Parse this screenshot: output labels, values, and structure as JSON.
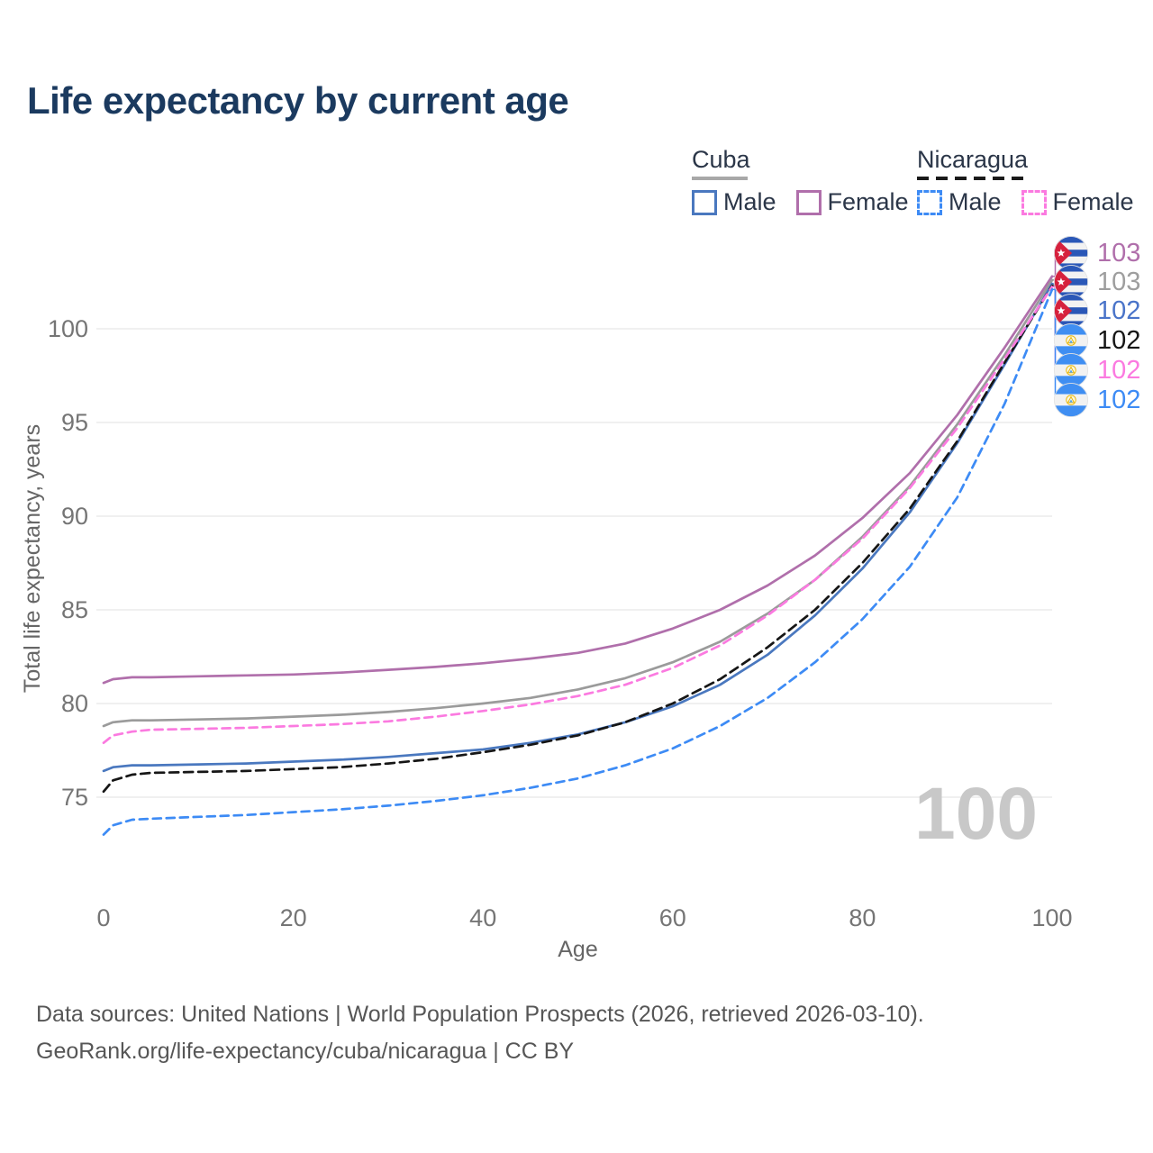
{
  "title": "Life expectancy by current age",
  "legend": {
    "groups": [
      {
        "label": "Cuba",
        "style": "solid",
        "items": [
          {
            "label": "Male",
            "color": "#4a78bf"
          },
          {
            "label": "Female",
            "color": "#b06fab"
          }
        ]
      },
      {
        "label": "Nicaragua",
        "style": "dashed",
        "items": [
          {
            "label": "Male",
            "color": "#3d8bf5"
          },
          {
            "label": "Female",
            "color": "#fb7ae0"
          }
        ]
      }
    ]
  },
  "axes": {
    "y_title": "Total life expectancy, years",
    "x_title": "Age",
    "y_ticks": [
      75,
      80,
      85,
      90,
      95,
      100
    ],
    "x_ticks": [
      0,
      20,
      40,
      60,
      80,
      100
    ]
  },
  "watermark": "100",
  "end_labels": [
    {
      "flag": "cuba",
      "value": "103",
      "series": "cuba_female",
      "color": "#b06fab"
    },
    {
      "flag": "cuba",
      "value": "103",
      "series": "cuba_total",
      "color": "#9e9e9e"
    },
    {
      "flag": "cuba",
      "value": "102",
      "series": "cuba_male",
      "color": "#4a74c9"
    },
    {
      "flag": "nicaragua",
      "value": "102",
      "series": "nicaragua_total",
      "color": "#161616"
    },
    {
      "flag": "nicaragua",
      "value": "102",
      "series": "nicaragua_female",
      "color": "#fb7ae0"
    },
    {
      "flag": "nicaragua",
      "value": "102",
      "series": "nicaragua_male",
      "color": "#3d8bf5"
    }
  ],
  "footer": {
    "line1": "Data sources: United Nations | World Population Prospects (2026, retrieved 2026-03-10).",
    "line2": "GeoRank.org/life-expectancy/cuba/nicaragua | CC BY"
  },
  "chart_data": {
    "type": "line",
    "title": "Life expectancy by current age",
    "xlabel": "Age",
    "ylabel": "Total life expectancy, years",
    "xlim": [
      0,
      100
    ],
    "ylim": [
      72,
      104
    ],
    "grid": "horizontal",
    "x": [
      0,
      1,
      3,
      5,
      10,
      15,
      20,
      25,
      30,
      35,
      40,
      45,
      50,
      55,
      60,
      65,
      70,
      75,
      80,
      85,
      90,
      95,
      100
    ],
    "series": [
      {
        "id": "cuba_female",
        "name": "Cuba Female",
        "color": "#b06fab",
        "dash": "solid",
        "values": [
          81.1,
          81.3,
          81.4,
          81.4,
          81.45,
          81.5,
          81.55,
          81.65,
          81.8,
          81.95,
          82.15,
          82.4,
          82.7,
          83.2,
          84.0,
          85.0,
          86.3,
          87.9,
          89.9,
          92.3,
          95.4,
          99.0,
          102.8
        ]
      },
      {
        "id": "cuba_total",
        "name": "Cuba Both sexes",
        "color": "#9b9b9b",
        "dash": "solid",
        "values": [
          78.8,
          79.0,
          79.1,
          79.1,
          79.15,
          79.2,
          79.3,
          79.4,
          79.55,
          79.75,
          80.0,
          80.3,
          80.75,
          81.35,
          82.2,
          83.3,
          84.8,
          86.6,
          88.9,
          91.6,
          94.9,
          98.6,
          102.6
        ]
      },
      {
        "id": "cuba_male",
        "name": "Cuba Male",
        "color": "#4a78bf",
        "dash": "solid",
        "values": [
          76.4,
          76.6,
          76.7,
          76.7,
          76.75,
          76.8,
          76.9,
          77.0,
          77.15,
          77.35,
          77.55,
          77.9,
          78.35,
          79.0,
          79.85,
          81.0,
          82.6,
          84.7,
          87.2,
          90.2,
          93.9,
          98.1,
          102.4
        ]
      },
      {
        "id": "nicaragua_total",
        "name": "Nicaragua Both sexes",
        "color": "#161616",
        "dash": "dashed",
        "values": [
          75.3,
          75.9,
          76.2,
          76.3,
          76.35,
          76.4,
          76.5,
          76.6,
          76.8,
          77.05,
          77.4,
          77.8,
          78.3,
          79.0,
          80.0,
          81.3,
          83.0,
          85.0,
          87.5,
          90.4,
          94.0,
          98.2,
          102.3
        ]
      },
      {
        "id": "nicaragua_female",
        "name": "Nicaragua Female",
        "color": "#fb7ae0",
        "dash": "dashed",
        "values": [
          77.9,
          78.3,
          78.5,
          78.6,
          78.65,
          78.7,
          78.8,
          78.9,
          79.05,
          79.3,
          79.6,
          79.95,
          80.4,
          81.0,
          81.9,
          83.1,
          84.7,
          86.6,
          88.8,
          91.5,
          94.7,
          98.4,
          102.25
        ]
      },
      {
        "id": "nicaragua_male",
        "name": "Nicaragua Male",
        "color": "#3d8bf5",
        "dash": "dashed",
        "values": [
          73.0,
          73.5,
          73.8,
          73.85,
          73.95,
          74.05,
          74.2,
          74.35,
          74.55,
          74.8,
          75.1,
          75.5,
          76.0,
          76.7,
          77.6,
          78.8,
          80.3,
          82.2,
          84.5,
          87.3,
          91.0,
          96.0,
          102.1
        ]
      }
    ]
  }
}
